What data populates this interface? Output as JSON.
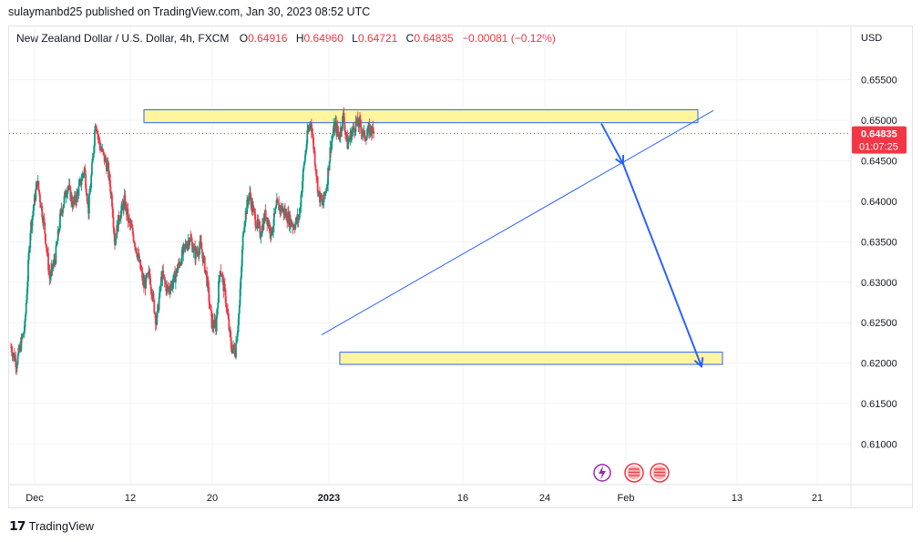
{
  "publish_info": "sulaymanbd25 published on TradingView.com, Jan 30, 2023 08:52 UTC",
  "footer_brand": "TradingView",
  "header": {
    "symbol": "New Zealand Dollar / U.S. Dollar, 4h, FXCM",
    "open_label": "O",
    "open": "0.64916",
    "high_label": "H",
    "high": "0.64960",
    "low_label": "L",
    "low": "0.64721",
    "close_label": "C",
    "close": "0.64835",
    "change": "−0.00081 (−0.12%)"
  },
  "price_axis": {
    "currency": "USD",
    "ticks": [
      "0.65500",
      "0.65000",
      "0.64500",
      "0.64000",
      "0.63500",
      "0.63000",
      "0.62500",
      "0.62000",
      "0.61500",
      "0.61000"
    ],
    "last_price": "0.64835",
    "countdown": "01:07:25"
  },
  "time_axis": {
    "ticks": [
      "Dec",
      "12",
      "20",
      "2023",
      "16",
      "24",
      "Feb",
      "13",
      "21"
    ]
  },
  "colors": {
    "up": "#089981",
    "down": "#f23645",
    "zone_fill": "#fff59d",
    "zone_border": "#2962ff",
    "trendline": "#2962ff",
    "arrow": "#2962ff",
    "event_purple": "#9c27b0",
    "event_red": "#f23645"
  },
  "events": [
    "lightning-event-icon",
    "us-flag-event-icon",
    "us-flag-event-icon"
  ],
  "chart_data": {
    "type": "candlestick",
    "instrument": "NZD/USD",
    "timeframe": "4h",
    "ylim": [
      0.605,
      0.659
    ],
    "y_ticks": [
      0.655,
      0.65,
      0.645,
      0.64,
      0.635,
      0.63,
      0.625,
      0.62,
      0.615,
      0.61
    ],
    "last_price": 0.64835,
    "anchors": [
      [
        0,
        0.622
      ],
      [
        8,
        0.62
      ],
      [
        20,
        0.6245
      ],
      [
        28,
        0.6365
      ],
      [
        38,
        0.6425
      ],
      [
        48,
        0.637
      ],
      [
        56,
        0.6305
      ],
      [
        64,
        0.633
      ],
      [
        72,
        0.6385
      ],
      [
        82,
        0.642
      ],
      [
        90,
        0.6395
      ],
      [
        98,
        0.6415
      ],
      [
        106,
        0.644
      ],
      [
        112,
        0.639
      ],
      [
        118,
        0.645
      ],
      [
        122,
        0.65
      ],
      [
        128,
        0.647
      ],
      [
        134,
        0.6455
      ],
      [
        140,
        0.644
      ],
      [
        146,
        0.64
      ],
      [
        150,
        0.635
      ],
      [
        156,
        0.638
      ],
      [
        164,
        0.64
      ],
      [
        170,
        0.6375
      ],
      [
        176,
        0.636
      ],
      [
        184,
        0.633
      ],
      [
        192,
        0.6295
      ],
      [
        200,
        0.631
      ],
      [
        210,
        0.625
      ],
      [
        218,
        0.631
      ],
      [
        226,
        0.629
      ],
      [
        234,
        0.63
      ],
      [
        242,
        0.632
      ],
      [
        250,
        0.634
      ],
      [
        258,
        0.6355
      ],
      [
        266,
        0.6335
      ],
      [
        274,
        0.6345
      ],
      [
        282,
        0.631
      ],
      [
        290,
        0.625
      ],
      [
        296,
        0.6245
      ],
      [
        302,
        0.632
      ],
      [
        310,
        0.628
      ],
      [
        318,
        0.622
      ],
      [
        324,
        0.6215
      ],
      [
        330,
        0.627
      ],
      [
        336,
        0.637
      ],
      [
        344,
        0.641
      ],
      [
        352,
        0.638
      ],
      [
        360,
        0.636
      ],
      [
        368,
        0.6385
      ],
      [
        376,
        0.636
      ],
      [
        384,
        0.6395
      ],
      [
        392,
        0.639
      ],
      [
        400,
        0.638
      ],
      [
        408,
        0.637
      ],
      [
        416,
        0.638
      ],
      [
        422,
        0.6435
      ],
      [
        428,
        0.648
      ],
      [
        433,
        0.65
      ],
      [
        438,
        0.646
      ],
      [
        444,
        0.641
      ],
      [
        450,
        0.6395
      ],
      [
        456,
        0.642
      ],
      [
        462,
        0.647
      ],
      [
        468,
        0.6495
      ],
      [
        474,
        0.648
      ],
      [
        480,
        0.6505
      ],
      [
        486,
        0.647
      ],
      [
        492,
        0.6485
      ],
      [
        498,
        0.6495
      ],
      [
        504,
        0.6495
      ],
      [
        510,
        0.648
      ],
      [
        516,
        0.6485
      ],
      [
        520,
        0.649
      ],
      [
        524,
        0.6483
      ]
    ],
    "zones": [
      {
        "name": "resistance",
        "from": 0.6497,
        "to": 0.6513
      },
      {
        "name": "support",
        "from": 0.61985,
        "to": 0.62135
      }
    ],
    "trendline": {
      "from": [
        0.6235
      ],
      "to": [
        0.6512
      ]
    },
    "projection": [
      0.6496,
      0.6446,
      0.6196
    ]
  }
}
